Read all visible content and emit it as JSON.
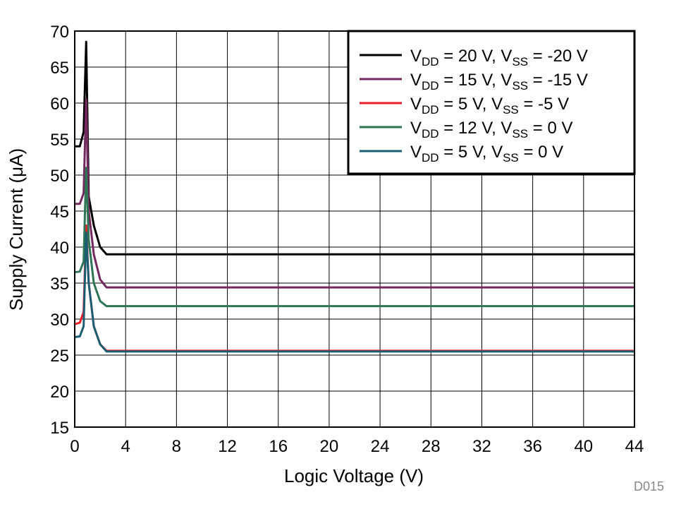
{
  "chart_data": {
    "type": "line",
    "x_label": "Logic Voltage (V)",
    "y_label": "Supply Current (μA)",
    "annotation": "D015",
    "xlim": [
      0,
      44
    ],
    "xticks": [
      0,
      4,
      8,
      12,
      16,
      20,
      24,
      28,
      32,
      36,
      40,
      44
    ],
    "ylim": [
      15,
      70
    ],
    "yticks": [
      15,
      20,
      25,
      30,
      35,
      40,
      45,
      50,
      55,
      60,
      65,
      70
    ],
    "grid": true,
    "legend": "upper-right",
    "x": [
      0,
      0.4,
      0.7,
      0.9,
      1.1,
      1.5,
      2,
      2.5,
      3,
      44
    ],
    "series": [
      {
        "name": "VDD = 20 V, VSS = -20 V",
        "color": "#000000",
        "values": [
          54,
          54,
          56,
          68.5,
          47,
          43,
          40,
          39,
          39,
          39
        ]
      },
      {
        "name": "VDD = 15 V, VSS = -15 V",
        "color": "#74295e",
        "values": [
          46,
          46,
          47.5,
          60.5,
          45,
          39,
          35.5,
          34.4,
          34.4,
          34.4
        ]
      },
      {
        "name": "VDD = 5 V, VSS = -5 V",
        "color": "#ee1c25",
        "values": [
          29.3,
          29.5,
          31,
          43,
          35,
          29,
          26.5,
          25.6,
          25.6,
          25.6
        ]
      },
      {
        "name": "VDD = 12 V, VSS = 0 V",
        "color": "#2e7556",
        "values": [
          36.5,
          36.6,
          38,
          51,
          41,
          35,
          32.5,
          31.8,
          31.8,
          31.8
        ]
      },
      {
        "name": "VDD = 5 V, VSS = 0 V",
        "color": "#1b5e74",
        "values": [
          27.5,
          27.6,
          29,
          42,
          35,
          29,
          26.5,
          25.5,
          25.5,
          25.5
        ]
      }
    ]
  }
}
